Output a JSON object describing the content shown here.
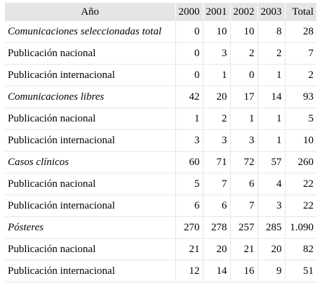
{
  "table": {
    "headers": [
      "Año",
      "2000",
      "2001",
      "2002",
      "2003",
      "Total"
    ],
    "rows": [
      {
        "label": "Comunicaciones seleccionadas total",
        "section": true,
        "values": [
          "0",
          "10",
          "10",
          "8",
          "28"
        ]
      },
      {
        "label": "Publicación nacional",
        "section": false,
        "values": [
          "0",
          "3",
          "2",
          "2",
          "7"
        ]
      },
      {
        "label": "Publicación internacional",
        "section": false,
        "values": [
          "0",
          "1",
          "0",
          "1",
          "2"
        ]
      },
      {
        "label": "Comunicaciones libres",
        "section": true,
        "values": [
          "42",
          "20",
          "17",
          "14",
          "93"
        ]
      },
      {
        "label": "Publicación nacional",
        "section": false,
        "values": [
          "1",
          "2",
          "1",
          "1",
          "5"
        ]
      },
      {
        "label": "Publicación internacional",
        "section": false,
        "values": [
          "3",
          "3",
          "3",
          "1",
          "10"
        ]
      },
      {
        "label": "Casos clínicos",
        "section": true,
        "values": [
          "60",
          "71",
          "72",
          "57",
          "260"
        ]
      },
      {
        "label": "Publicación nacional",
        "section": false,
        "values": [
          "5",
          "7",
          "6",
          "4",
          "22"
        ]
      },
      {
        "label": "Publicación internacional",
        "section": false,
        "values": [
          "6",
          "6",
          "7",
          "3",
          "22"
        ]
      },
      {
        "label": "Pósteres",
        "section": true,
        "values": [
          "270",
          "278",
          "257",
          "285",
          "1.090"
        ]
      },
      {
        "label": "Publicación nacional",
        "section": false,
        "values": [
          "21",
          "20",
          "21",
          "20",
          "82"
        ]
      },
      {
        "label": "Publicación internacional",
        "section": false,
        "values": [
          "12",
          "14",
          "16",
          "9",
          "51"
        ]
      }
    ]
  }
}
